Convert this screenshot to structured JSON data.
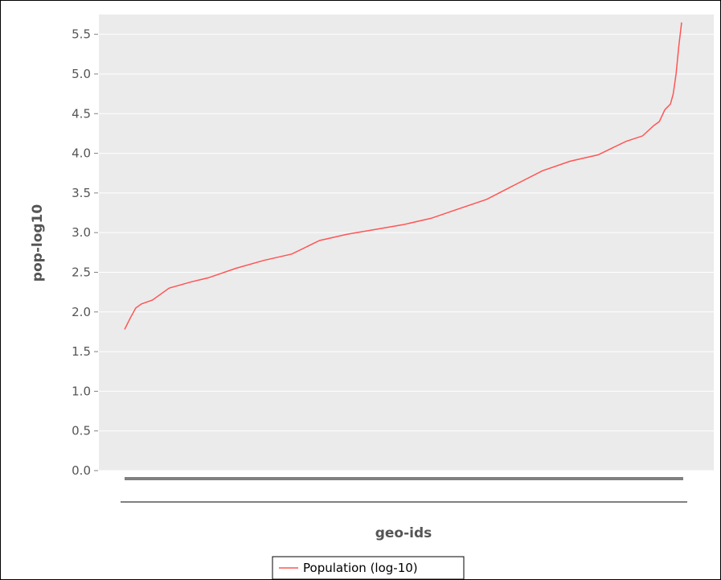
{
  "chart_data": {
    "type": "line",
    "xlabel": "geo-ids",
    "ylabel": "pop-log10",
    "ylim": [
      0.0,
      5.75
    ],
    "yticks": [
      "0.0",
      "0.5",
      "1.0",
      "1.5",
      "2.0",
      "2.5",
      "3.0",
      "3.5",
      "4.0",
      "4.5",
      "5.0",
      "5.5"
    ],
    "grid": true,
    "legend_position": "bottom-center",
    "colors": {
      "series": "#ff5555",
      "plot_bg": "#ebebeb",
      "grid": "#ffffff",
      "axis_bar": "#808080"
    },
    "series": [
      {
        "name": "Population (log-10)",
        "x": [
          0,
          0.01,
          0.02,
          0.03,
          0.05,
          0.08,
          0.12,
          0.15,
          0.2,
          0.25,
          0.3,
          0.35,
          0.4,
          0.45,
          0.5,
          0.55,
          0.6,
          0.65,
          0.7,
          0.75,
          0.8,
          0.85,
          0.9,
          0.93,
          0.95,
          0.96,
          0.97,
          0.98,
          0.985,
          0.99,
          0.995,
          1.0
        ],
        "values": [
          1.78,
          1.92,
          2.05,
          2.1,
          2.15,
          2.3,
          2.38,
          2.43,
          2.55,
          2.65,
          2.73,
          2.9,
          2.98,
          3.04,
          3.1,
          3.18,
          3.3,
          3.42,
          3.6,
          3.78,
          3.9,
          3.98,
          4.15,
          4.22,
          4.35,
          4.4,
          4.55,
          4.62,
          4.75,
          5.0,
          5.35,
          5.65
        ]
      }
    ]
  }
}
